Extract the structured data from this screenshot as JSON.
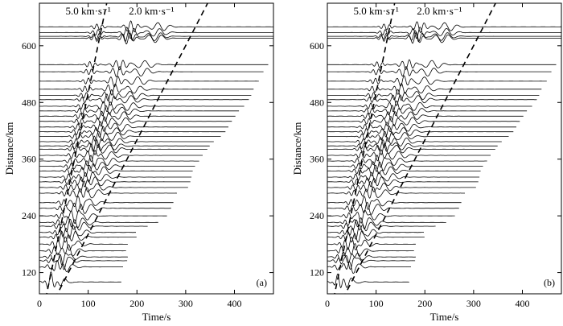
{
  "chart_data": [
    {
      "type": "line",
      "panel_label": "(a)",
      "xlabel": "Time/s",
      "ylabel": "Distance/km",
      "xlim": [
        0,
        480
      ],
      "ylim": [
        75,
        690
      ],
      "xticks": [
        0,
        100,
        200,
        300,
        400
      ],
      "yticks": [
        120,
        240,
        360,
        480,
        600
      ],
      "velocity_lines": [
        {
          "label": "5.0 km·s⁻¹",
          "velocity_km_s": 5.0,
          "points": [
            [
              13,
              65
            ],
            [
              148,
              740
            ]
          ]
        },
        {
          "label": "2.0 km·s⁻¹",
          "velocity_km_s": 2.0,
          "points": [
            [
              32,
              65
            ],
            [
              370,
              740
            ]
          ]
        }
      ],
      "traces": {
        "distances_km": [
          100,
          132,
          145,
          153,
          166,
          180,
          195,
          205,
          218,
          226,
          240,
          256,
          268,
          288,
          300,
          312,
          322,
          335,
          345,
          356,
          368,
          381,
          388,
          397,
          408,
          418,
          428,
          440,
          451,
          462,
          472,
          486,
          495,
          508,
          525,
          545,
          560,
          616,
          620,
          628,
          640
        ],
        "end_times_s": [
          168,
          172,
          180,
          182,
          178,
          182,
          200,
          198,
          222,
          244,
          262,
          270,
          275,
          282,
          305,
          310,
          312,
          315,
          320,
          328,
          335,
          345,
          350,
          358,
          372,
          382,
          388,
          395,
          402,
          410,
          420,
          430,
          435,
          440,
          450,
          460,
          470,
          480,
          480,
          480,
          480
        ]
      }
    },
    {
      "type": "line",
      "panel_label": "(b)",
      "xlabel": "Time/s",
      "ylabel": "Distance/km",
      "xlim": [
        0,
        480
      ],
      "ylim": [
        75,
        690
      ],
      "xticks": [
        0,
        100,
        200,
        300,
        400
      ],
      "yticks": [
        120,
        240,
        360,
        480,
        600
      ],
      "velocity_lines": [
        {
          "label": "5.0 km·s⁻¹",
          "velocity_km_s": 5.0,
          "points": [
            [
              13,
              65
            ],
            [
              148,
              740
            ]
          ]
        },
        {
          "label": "2.0 km·s⁻¹",
          "velocity_km_s": 2.0,
          "points": [
            [
              32,
              65
            ],
            [
              370,
              740
            ]
          ]
        }
      ],
      "traces": {
        "distances_km": [
          100,
          132,
          145,
          153,
          166,
          180,
          195,
          205,
          218,
          226,
          240,
          256,
          268,
          288,
          300,
          312,
          322,
          335,
          345,
          356,
          368,
          381,
          388,
          397,
          408,
          418,
          428,
          440,
          451,
          462,
          472,
          486,
          495,
          508,
          525,
          545,
          560,
          616,
          620,
          628,
          640
        ],
        "end_times_s": [
          168,
          172,
          180,
          182,
          178,
          182,
          200,
          198,
          222,
          244,
          262,
          270,
          275,
          282,
          305,
          310,
          312,
          315,
          320,
          328,
          335,
          345,
          350,
          358,
          372,
          382,
          388,
          395,
          402,
          410,
          420,
          430,
          435,
          440,
          450,
          460,
          470,
          480,
          480,
          480,
          480
        ]
      }
    }
  ]
}
